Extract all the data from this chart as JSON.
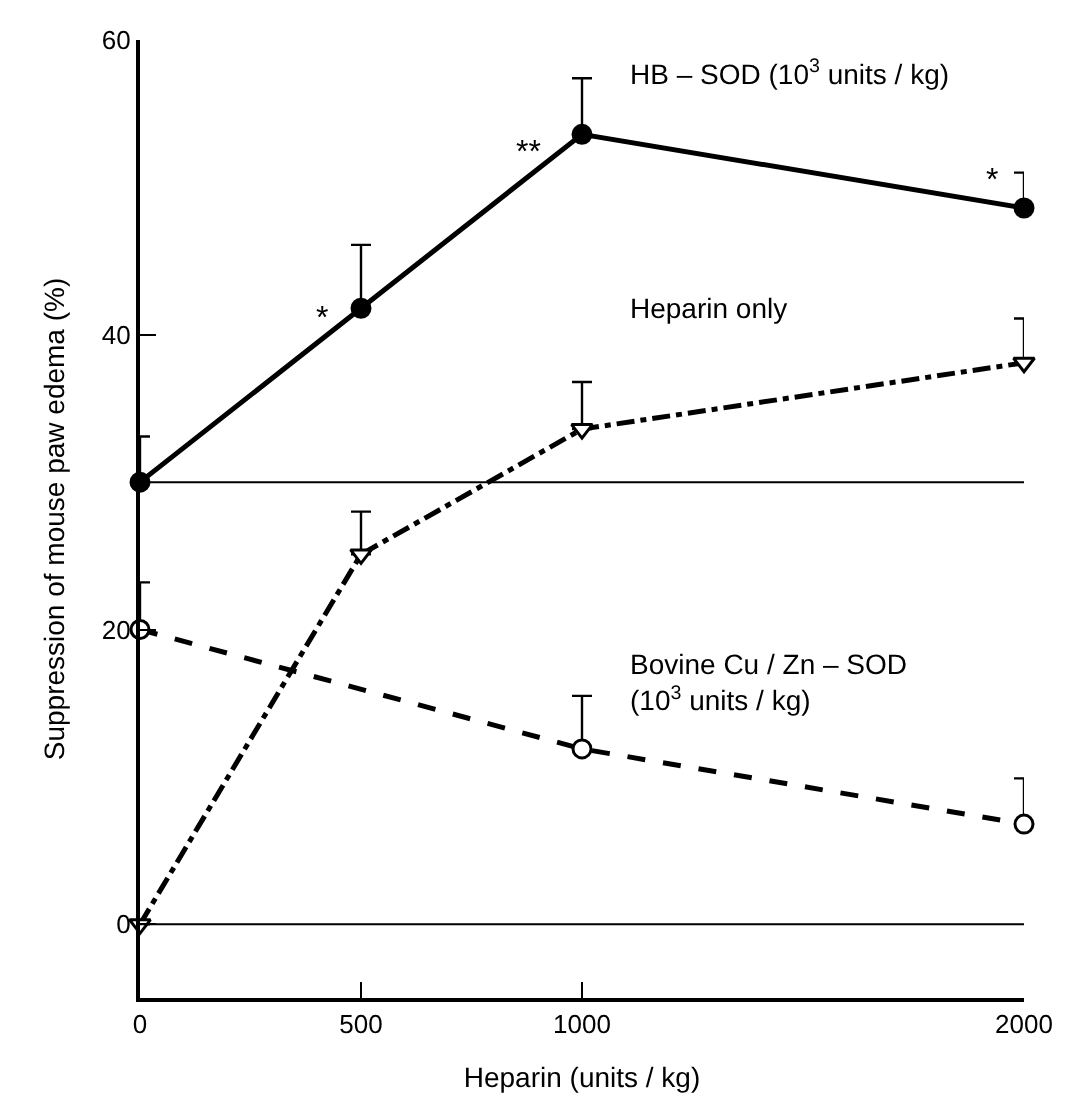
{
  "chart_data": {
    "type": "line",
    "xlabel": "Heparin (units / kg)",
    "ylabel": "Suppression of mouse paw edema (%)",
    "x": [
      0,
      500,
      1000,
      2000
    ],
    "series": [
      {
        "name": "HB – SOD (10$^{3}$ units / kg)",
        "color": "#000000",
        "values": [
          30.0,
          41.8,
          53.6,
          48.6
        ],
        "errors": [
          [
            30.0,
            33.1
          ],
          [
            41.8,
            46.1
          ],
          [
            53.6,
            57.4
          ],
          [
            48.6,
            51.0
          ]
        ],
        "marker": "circle",
        "line_style": "solid"
      },
      {
        "name": "Heparin only",
        "color": "#000000",
        "values": [
          0,
          25.1,
          33.6,
          38.1
        ],
        "errors": [
          null,
          [
            25.1,
            28.0
          ],
          [
            33.6,
            36.8
          ],
          [
            38.1,
            41.1
          ]
        ],
        "marker": "triangle-down-open",
        "line_style": "dashdot"
      },
      {
        "name": "Bovine Cu / Zn – SOD\n(10$^{3}$ units / kg)",
        "color": "#000000",
        "values": [
          20.0,
          null,
          11.9,
          6.8
        ],
        "errors": [
          [
            20.0,
            23.2
          ],
          null,
          [
            11.9,
            15.5
          ],
          [
            6.8,
            9.9
          ]
        ],
        "marker": "circle-open",
        "line_style": "dashed"
      }
    ],
    "annotations": [
      "*",
      "**",
      "*"
    ],
    "ref_lines": [
      {
        "axis": "y",
        "value": 30,
        "label": null,
        "color": "#000000"
      },
      {
        "axis": "y",
        "value": 0,
        "label": null,
        "color": "#000000"
      }
    ],
    "xlim": [
      0,
      2000
    ],
    "xticks": [
      0,
      500,
      1000,
      2000
    ],
    "ylim": [
      -5,
      60
    ],
    "yticks": [
      0,
      20,
      40,
      60
    ],
    "legend": false
  }
}
